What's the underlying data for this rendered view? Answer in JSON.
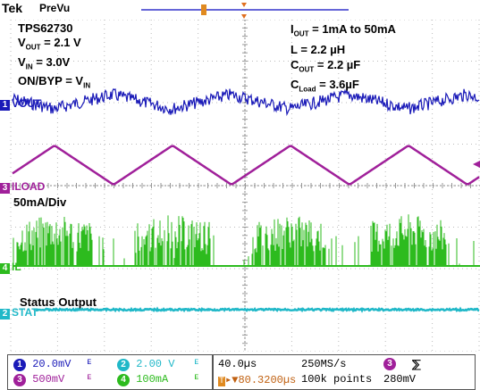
{
  "header": {
    "brand": "Tek",
    "mode": "PreVu",
    "trigger_label": "T"
  },
  "annotations": {
    "left": [
      "TPS62730",
      "V",
      "OUT",
      " = 2.1 V",
      "V",
      "IN",
      " = 3.0V",
      "ON/BYP = V",
      "IN"
    ],
    "right": [
      "I",
      "OUT",
      " = 1mA to 50mA",
      "L = 2.2 µH",
      "C",
      "OUT",
      " = 2.2 µF",
      "C",
      "Load",
      " = 3.6µF"
    ],
    "div_label": "50mA/Div",
    "status_label": "Status Output"
  },
  "channels": {
    "ch1": {
      "num": "1",
      "name": "VOUT",
      "color": "#1a1ab8"
    },
    "ch3": {
      "num": "3",
      "name": "ILOAD",
      "color": "#a0209a"
    },
    "ch4": {
      "num": "4",
      "name": "IL",
      "color": "#2dbb1e"
    },
    "ch2": {
      "num": "2",
      "name": "STAT",
      "color": "#20b8c8"
    }
  },
  "readouts": {
    "ch1_scale": "20.0mV",
    "ch2_scale": "2.00 V",
    "ch3_scale": "500mV",
    "ch4_scale": "100mA",
    "bw1": "ᴮᵂ",
    "bw2": "ᴮᵂ",
    "timebase": "40.0µs",
    "sample_rate": "250MS/s",
    "trig_pos": "▸▼80.3200µs",
    "record": "100k points",
    "trig_ch": "3",
    "trig_level": "280mV"
  }
}
